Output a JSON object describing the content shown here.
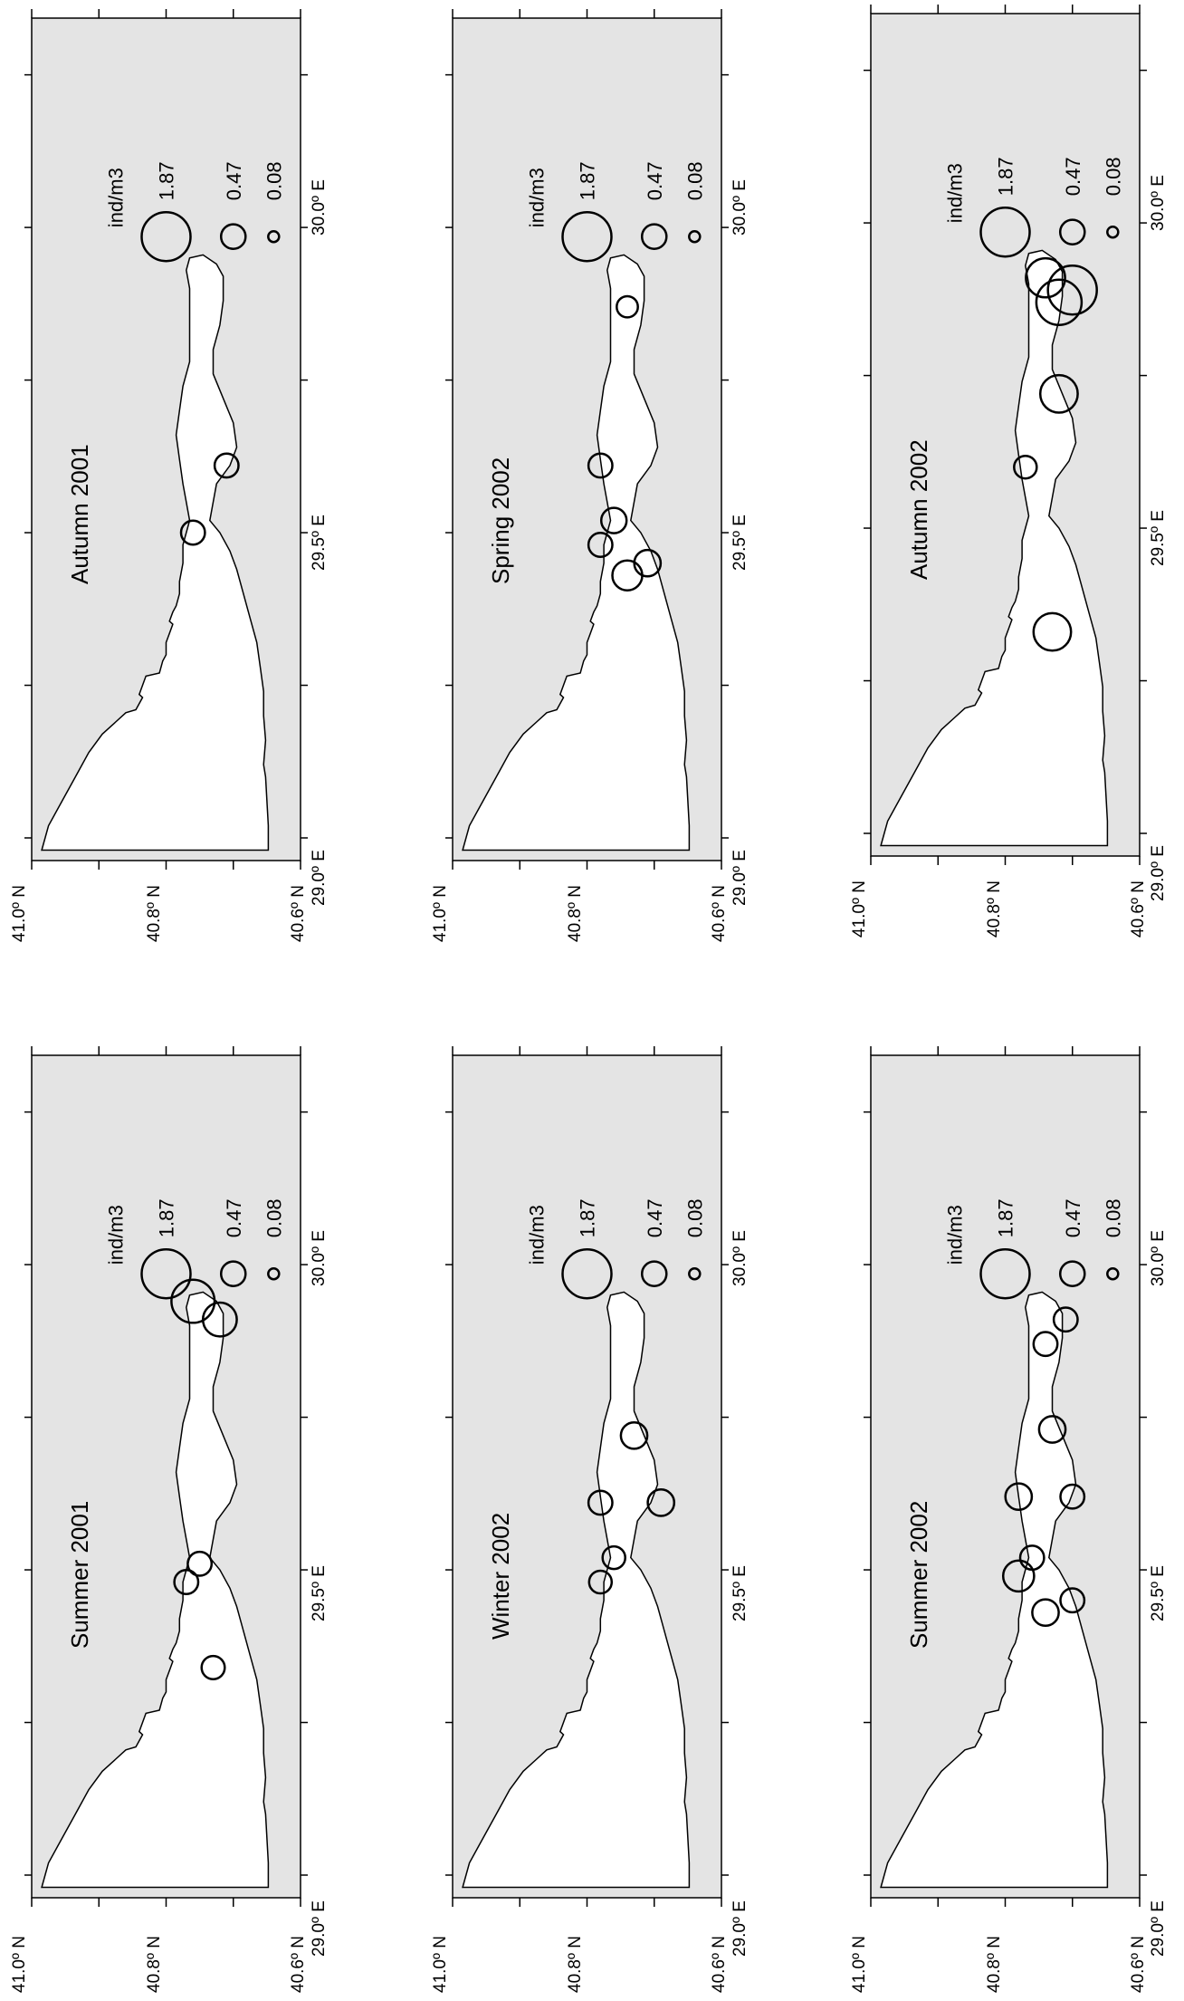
{
  "figure": {
    "axis_labels": {
      "lat": [
        "41.0º N",
        "40.8º N",
        "40.6º N"
      ],
      "lon": [
        "29.0º E",
        "29.5º E",
        "30.0º E"
      ]
    },
    "legend": {
      "title": "ind/m3",
      "entries": [
        {
          "label": "1.87",
          "value": 1.87
        },
        {
          "label": "0.47",
          "value": 0.47
        },
        {
          "label": "0.08",
          "value": 0.08
        }
      ]
    },
    "colors": {
      "sea": "#e4e4e4",
      "land": "#ffffff",
      "outline": "#000000"
    }
  },
  "panels": [
    {
      "id": "summer-2001",
      "title": "Summer 2001",
      "stations": [
        {
          "lon": 29.94,
          "lat": 40.76,
          "value": 1.45
        },
        {
          "lon": 29.91,
          "lat": 40.72,
          "value": 0.9
        },
        {
          "lon": 29.51,
          "lat": 40.75,
          "value": 0.45
        },
        {
          "lon": 29.48,
          "lat": 40.77,
          "value": 0.45
        },
        {
          "lon": 29.34,
          "lat": 40.73,
          "value": 0.42
        }
      ]
    },
    {
      "id": "winter-2002",
      "title": "Winter 2002",
      "stations": [
        {
          "lon": 29.72,
          "lat": 40.73,
          "value": 0.55
        },
        {
          "lon": 29.61,
          "lat": 40.78,
          "value": 0.45
        },
        {
          "lon": 29.61,
          "lat": 40.69,
          "value": 0.55
        },
        {
          "lon": 29.52,
          "lat": 40.76,
          "value": 0.4
        },
        {
          "lon": 29.48,
          "lat": 40.78,
          "value": 0.4
        }
      ]
    },
    {
      "id": "summer-2002",
      "title": "Summer 2002",
      "stations": [
        {
          "lon": 29.91,
          "lat": 40.71,
          "value": 0.45
        },
        {
          "lon": 29.87,
          "lat": 40.74,
          "value": 0.45
        },
        {
          "lon": 29.73,
          "lat": 40.73,
          "value": 0.55
        },
        {
          "lon": 29.62,
          "lat": 40.78,
          "value": 0.55
        },
        {
          "lon": 29.62,
          "lat": 40.7,
          "value": 0.45
        },
        {
          "lon": 29.52,
          "lat": 40.76,
          "value": 0.45
        },
        {
          "lon": 29.49,
          "lat": 40.78,
          "value": 0.75
        },
        {
          "lon": 29.45,
          "lat": 40.7,
          "value": 0.45
        },
        {
          "lon": 29.43,
          "lat": 40.74,
          "value": 0.55
        }
      ]
    },
    {
      "id": "autumn-2001",
      "title": "Autumn 2001",
      "stations": [
        {
          "lon": 29.61,
          "lat": 40.71,
          "value": 0.45
        },
        {
          "lon": 29.5,
          "lat": 40.76,
          "value": 0.45
        }
      ]
    },
    {
      "id": "spring-2002",
      "title": "Spring 2002",
      "stations": [
        {
          "lon": 29.87,
          "lat": 40.74,
          "value": 0.35
        },
        {
          "lon": 29.61,
          "lat": 40.78,
          "value": 0.45
        },
        {
          "lon": 29.52,
          "lat": 40.76,
          "value": 0.5
        },
        {
          "lon": 29.48,
          "lat": 40.78,
          "value": 0.45
        },
        {
          "lon": 29.45,
          "lat": 40.71,
          "value": 0.55
        },
        {
          "lon": 29.43,
          "lat": 40.74,
          "value": 0.7
        }
      ]
    },
    {
      "id": "autumn-2002",
      "title": "Autumn 2002",
      "stations": [
        {
          "lon": 29.91,
          "lat": 40.74,
          "value": 1.2
        },
        {
          "lon": 29.89,
          "lat": 40.7,
          "value": 1.87
        },
        {
          "lon": 29.87,
          "lat": 40.72,
          "value": 1.6
        },
        {
          "lon": 29.72,
          "lat": 40.72,
          "value": 1.1
        },
        {
          "lon": 29.6,
          "lat": 40.77,
          "value": 0.4
        },
        {
          "lon": 29.33,
          "lat": 40.73,
          "value": 1.1
        }
      ]
    }
  ]
}
